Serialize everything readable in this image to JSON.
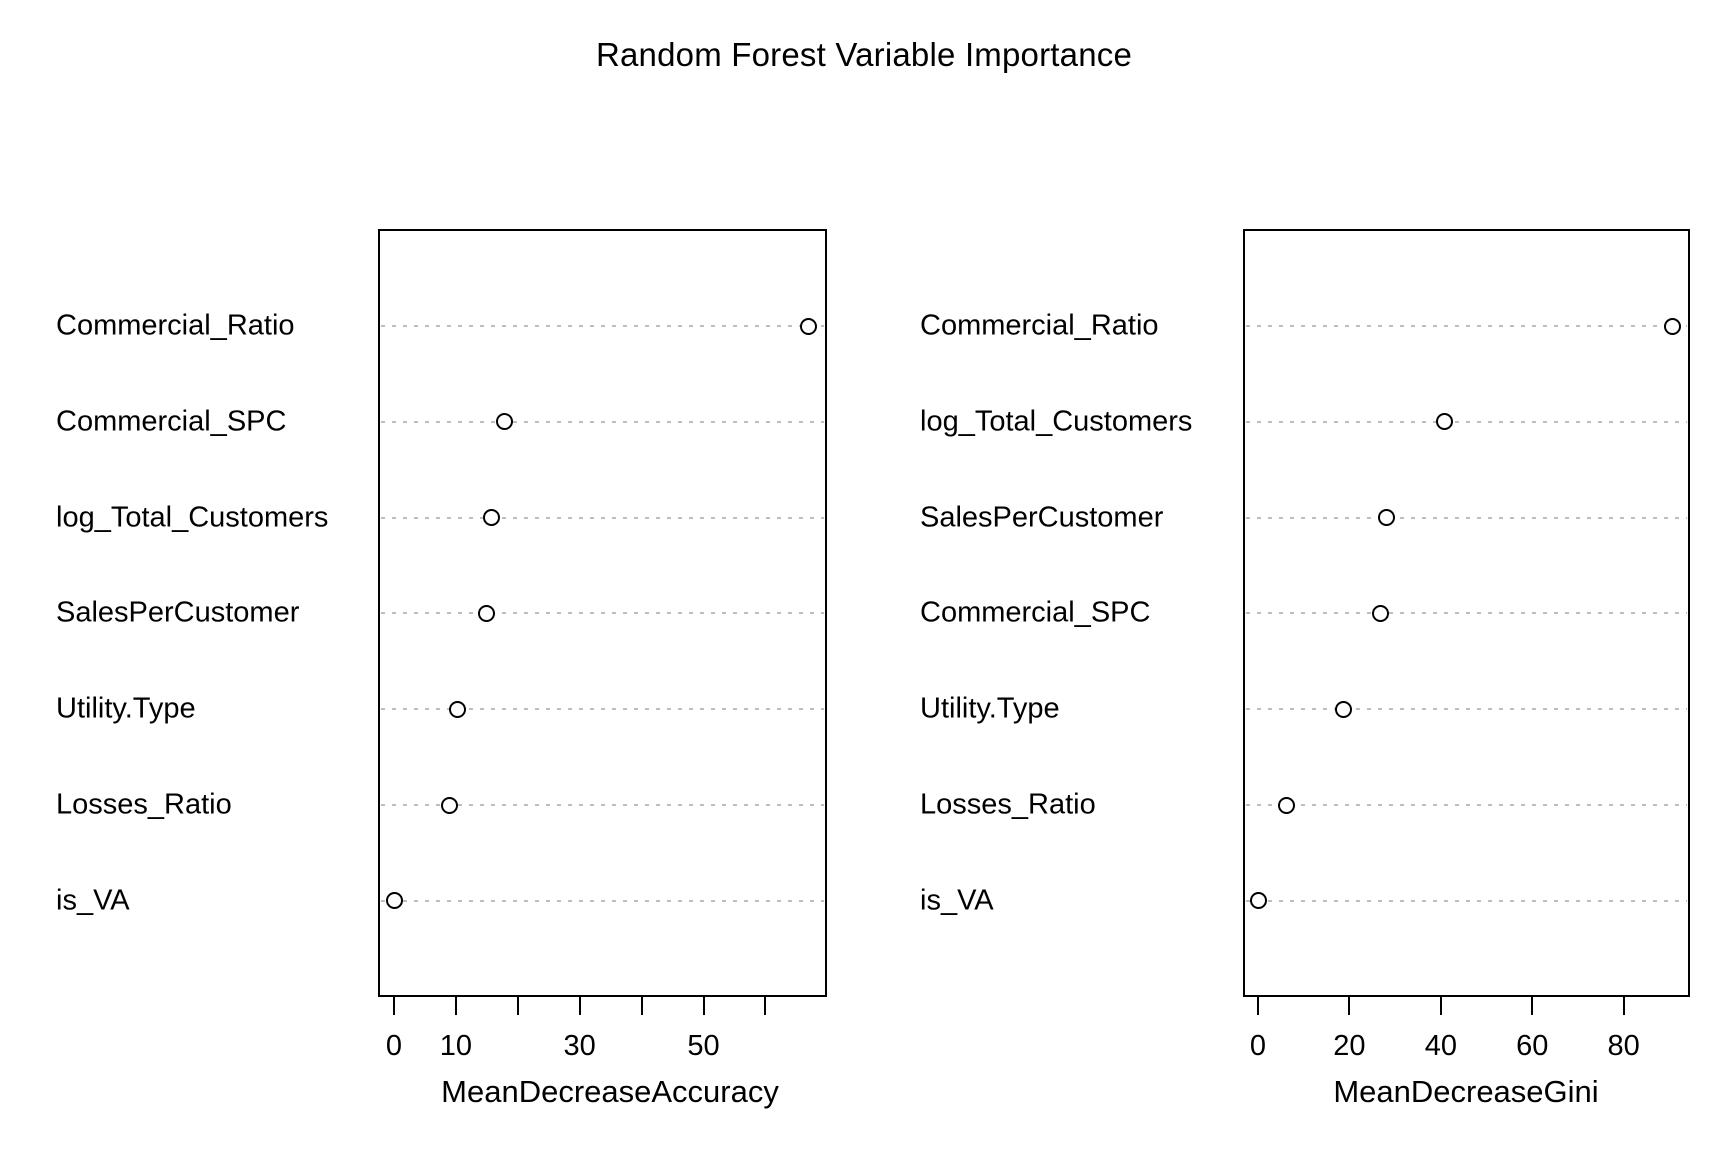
{
  "title": "Random Forest Variable Importance",
  "chart_data": [
    {
      "type": "scatter",
      "subtype": "dotchart",
      "panel": "left",
      "xlabel": "MeanDecreaseAccuracy",
      "ylabel": "",
      "xlim": [
        -2.7,
        69.7
      ],
      "grid": "horizontal dotted guide lines",
      "legend_position": "none",
      "marker": "open-circle",
      "categories": [
        "Commercial_Ratio",
        "Commercial_SPC",
        "log_Total_Customers",
        "SalesPerCustomer",
        "Utility.Type",
        "Losses_Ratio",
        "is_VA"
      ],
      "values": [
        67.0,
        17.9,
        15.7,
        14.9,
        10.2,
        8.9,
        0.0
      ],
      "xticks": [
        {
          "v": 0,
          "label": "0"
        },
        {
          "v": 10,
          "label": "10"
        },
        {
          "v": 20,
          "label": ""
        },
        {
          "v": 30,
          "label": "30"
        },
        {
          "v": 40,
          "label": ""
        },
        {
          "v": 50,
          "label": "50"
        },
        {
          "v": 60,
          "label": ""
        }
      ]
    },
    {
      "type": "scatter",
      "subtype": "dotchart",
      "panel": "right",
      "xlabel": "MeanDecreaseGini",
      "ylabel": "",
      "xlim": [
        -3.4,
        94.6
      ],
      "grid": "horizontal dotted guide lines",
      "legend_position": "none",
      "marker": "open-circle",
      "categories": [
        "Commercial_Ratio",
        "log_Total_Customers",
        "SalesPerCustomer",
        "Commercial_SPC",
        "Utility.Type",
        "Losses_Ratio",
        "is_VA"
      ],
      "values": [
        90.6,
        40.9,
        28.2,
        26.7,
        18.6,
        6.3,
        0.2
      ],
      "xticks": [
        {
          "v": 0,
          "label": "0"
        },
        {
          "v": 20,
          "label": "20"
        },
        {
          "v": 40,
          "label": "40"
        },
        {
          "v": 60,
          "label": "60"
        },
        {
          "v": 80,
          "label": "80"
        }
      ]
    }
  ]
}
